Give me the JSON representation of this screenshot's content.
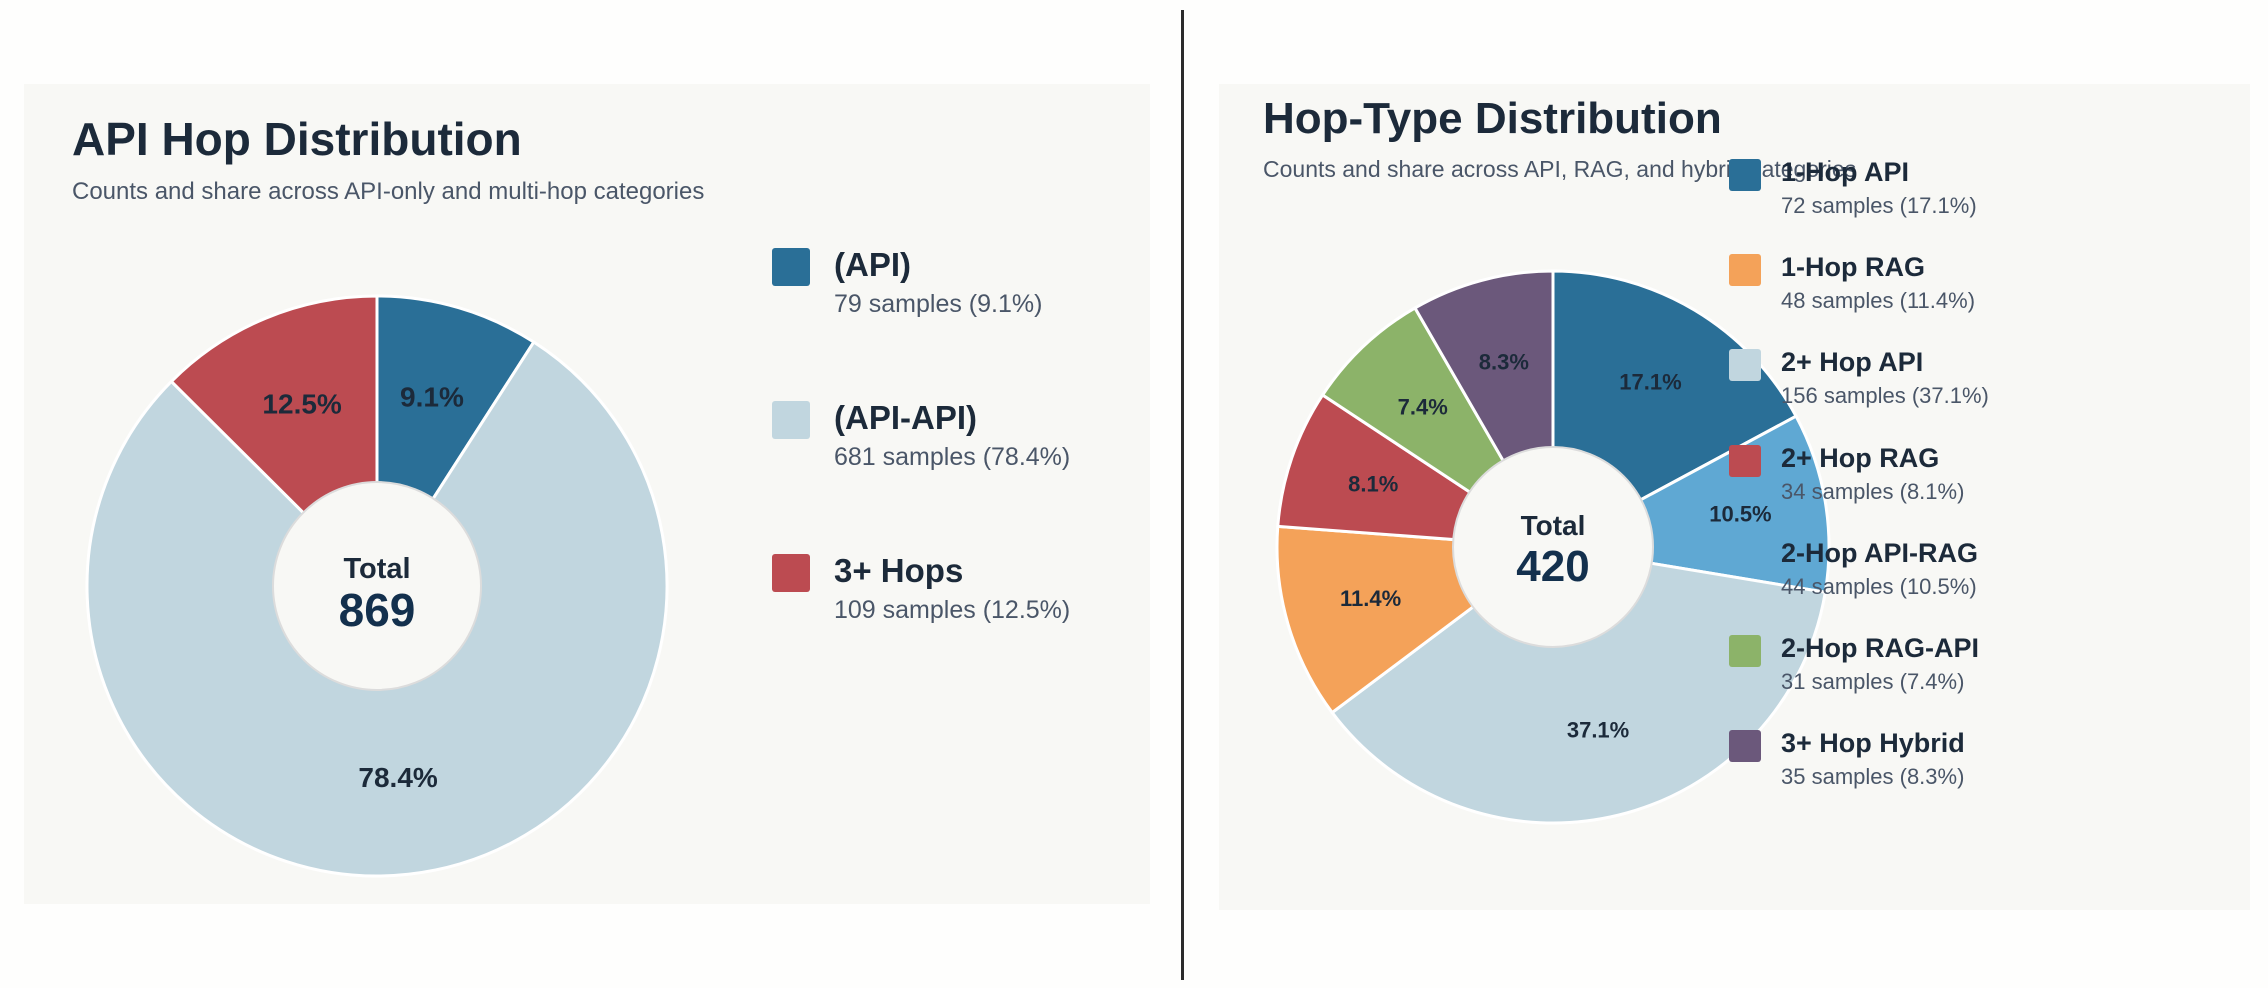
{
  "chart_data": [
    {
      "type": "pie",
      "variant": "donut",
      "title": "API Hop Distribution",
      "subtitle": "Counts and share across API-only and multi-hop categories",
      "center_label": "Total",
      "total": 869,
      "slices": [
        {
          "label": "(API)",
          "value": 79,
          "percent": "9.1%",
          "color": "#2a6f97",
          "legend_text": "79 samples (9.1%)"
        },
        {
          "label": "(API-API)",
          "value": 681,
          "percent": "78.4%",
          "color": "#c1d6df",
          "legend_text": "681 samples (78.4%)"
        },
        {
          "label": "3+ Hops",
          "value": 109,
          "percent": "12.5%",
          "color": "#bc4b51",
          "legend_text": "109 samples (12.5%)"
        }
      ],
      "legend_position": "right"
    },
    {
      "type": "pie",
      "variant": "donut",
      "title": "Hop-Type Distribution",
      "subtitle": "Counts and share across API, RAG, and hybrid categories",
      "center_label": "Total",
      "total": 420,
      "slices": [
        {
          "label": "1-Hop API",
          "value": 72,
          "percent": "17.1%",
          "color": "#2a6f97",
          "legend_text": "72 samples (17.1%)"
        },
        {
          "label": "1-Hop RAG",
          "value": 48,
          "percent": "11.4%",
          "color": "#f4a259",
          "legend_text": "48 samples (11.4%)"
        },
        {
          "label": "2+ Hop API",
          "value": 156,
          "percent": "37.1%",
          "color": "#c1d6df",
          "legend_text": "156 samples (37.1%)"
        },
        {
          "label": "2+ Hop RAG",
          "value": 34,
          "percent": "8.1%",
          "color": "#bc4b51",
          "legend_text": "34 samples (8.1%)"
        },
        {
          "label": "2-Hop API-RAG",
          "value": 44,
          "percent": "10.5%",
          "color": "#5fa8d3",
          "legend_text": "44 samples (10.5%)"
        },
        {
          "label": "2-Hop RAG-API",
          "value": 31,
          "percent": "7.4%",
          "color": "#8cb369",
          "legend_text": "31 samples (7.4%)"
        },
        {
          "label": "3+ Hop Hybrid",
          "value": 35,
          "percent": "8.3%",
          "color": "#6b587b",
          "legend_text": "35 samples (8.3%)"
        }
      ],
      "draw_order": [
        0,
        4,
        2,
        1,
        3,
        5,
        6
      ],
      "legend_position": "right"
    }
  ]
}
